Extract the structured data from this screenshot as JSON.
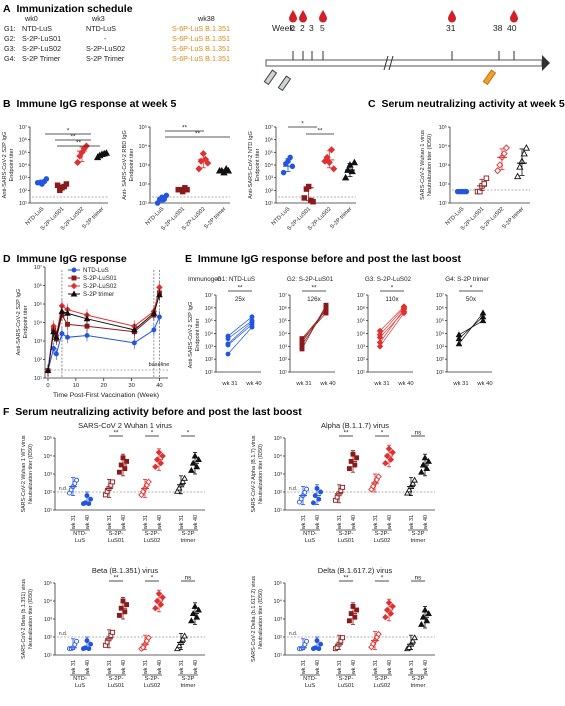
{
  "sections": {
    "A": {
      "letter": "A",
      "title": "Immunization schedule"
    },
    "B": {
      "letter": "B",
      "title": "Immune IgG response at week 5"
    },
    "C": {
      "letter": "C",
      "title": "Serum neutralizing activity at week 5"
    },
    "D": {
      "letter": "D",
      "title": "Immune IgG response"
    },
    "E": {
      "letter": "E",
      "title": "Immune IgG response before and post the last boost"
    },
    "F": {
      "letter": "F",
      "title": "Serum neutralizing activity before and post the last boost"
    }
  },
  "schedule": {
    "weeks": [
      "wk0",
      "wk3",
      "wk38"
    ],
    "groups": [
      {
        "label": "G1:",
        "wk0": "NTD-LuS",
        "wk3": "NTD-LuS",
        "wk38": "S-6P-LuS B.1.351"
      },
      {
        "label": "G2:",
        "wk0": "S-2P-LuS01",
        "wk3": "-",
        "wk38": "S-6P-LuS B.1.351"
      },
      {
        "label": "G3:",
        "wk0": "S-2P-LuS02",
        "wk3": "S-2P-LuS02",
        "wk38": "S-6P-LuS B.1.351"
      },
      {
        "label": "G4:",
        "wk0": "S-2P Trimer",
        "wk3": "S-2P Trimer",
        "wk38": "S-6P-LuS B.1.351"
      }
    ],
    "timeline_label": "Week:",
    "timeline_weeks": [
      "0",
      "2",
      "3",
      "5",
      "31",
      "38",
      "40"
    ]
  },
  "colors": {
    "ntd": "#2255e0",
    "s2p01": "#8b1a1a",
    "s2p02": "#e03030",
    "trimer": "#111111",
    "orange": "#d98a1c"
  },
  "panelB": {
    "groups": [
      "NTD-LuS",
      "S-2P-LuS01",
      "S-2P-LuS02",
      "S-2P trimer"
    ],
    "ylabels": [
      "Anti-SARS-CoV-2 S2P IgG\nEndpoint titer",
      "Anti- SARS-CoV-2 RBD IgG\nEndpoint titer",
      "Anti-SARS-CoV-2 NTD IgG\nEndpoint titer"
    ],
    "sig": [
      "*",
      "**",
      "**",
      "**",
      "**",
      "*",
      "**"
    ]
  },
  "panelC": {
    "ylabel": "SARS-CoV-2 Wuhan 1 virus\nNeutralization titer (ID50)"
  },
  "panelD": {
    "ylabel": "Anti-SARS-CoV-2 S2P IgG\nEndpoint titer",
    "xlabel": "Time Post-First Vaccination (Week)",
    "legend": [
      "NTD-LuS",
      "S-2P-LuS01",
      "S-2P-LuS02",
      "S-2P trimer"
    ],
    "baseline": "baseline",
    "xticks": [
      "0",
      "10",
      "20",
      "30",
      "40"
    ]
  },
  "panelE": {
    "immunogen_label": "Immunogen",
    "panels": [
      {
        "title": "G1: NTD-LuS",
        "fold": "25x",
        "sig": "**"
      },
      {
        "title": "G2: S-2P-LuS01",
        "fold": "126x",
        "sig": "**"
      },
      {
        "title": "G3: S-2P-LuS02",
        "fold": "110x",
        "sig": "*"
      },
      {
        "title": "G4: S-2P trimer",
        "fold": "50x",
        "sig": "*"
      }
    ],
    "ylabel": "Anti-SARS-CoV-2 S2P IgG\nEndpoint titer",
    "xticks": [
      "wk 31",
      "wk 40"
    ]
  },
  "panelF": {
    "subplots": [
      {
        "title": "SARS-CoV 2 Wuhan 1 virus",
        "ylabel": "SARS-CoV-2 Wuhan 1 WT virus\nNeutralization titer (ID50)"
      },
      {
        "title": "Alpha (B.1.1.7) virus",
        "ylabel": "SARS-CoV-2 Alpha (B.1.7) virus\nNeutralization titer (ID50)"
      },
      {
        "title": "Beta (B.1.351) virus",
        "ylabel": "SARS-CoV-2 Beta (b.1.351) virus\nNeutralization titer (ID50)"
      },
      {
        "title": "Delta (B.1.617.2) virus",
        "ylabel": "SARS-CoV-2 Delta (b.1.617.2) virus\nNeutralization titer (ID50)"
      }
    ],
    "sig_rows": [
      [
        "**",
        "*",
        "*"
      ],
      [
        "**",
        "*",
        "ns"
      ],
      [
        "**",
        "*",
        "ns"
      ],
      [
        "**",
        "*",
        "ns"
      ]
    ],
    "nd": "n.d.",
    "xticks": [
      "wk 31",
      "wk 40"
    ],
    "groups": [
      "NTD-\nLuS",
      "S-2P-\nLuS01",
      "S-2P-\nLuS02",
      "S-2P\ntrimer"
    ]
  },
  "ytick_labels": {
    "ten7": "10⁷",
    "ten6": "10⁶",
    "ten5": "10⁵",
    "ten4": "10⁴",
    "ten3": "10³",
    "ten2": "10²",
    "ten1": "10¹",
    "ten0": "10⁰"
  }
}
